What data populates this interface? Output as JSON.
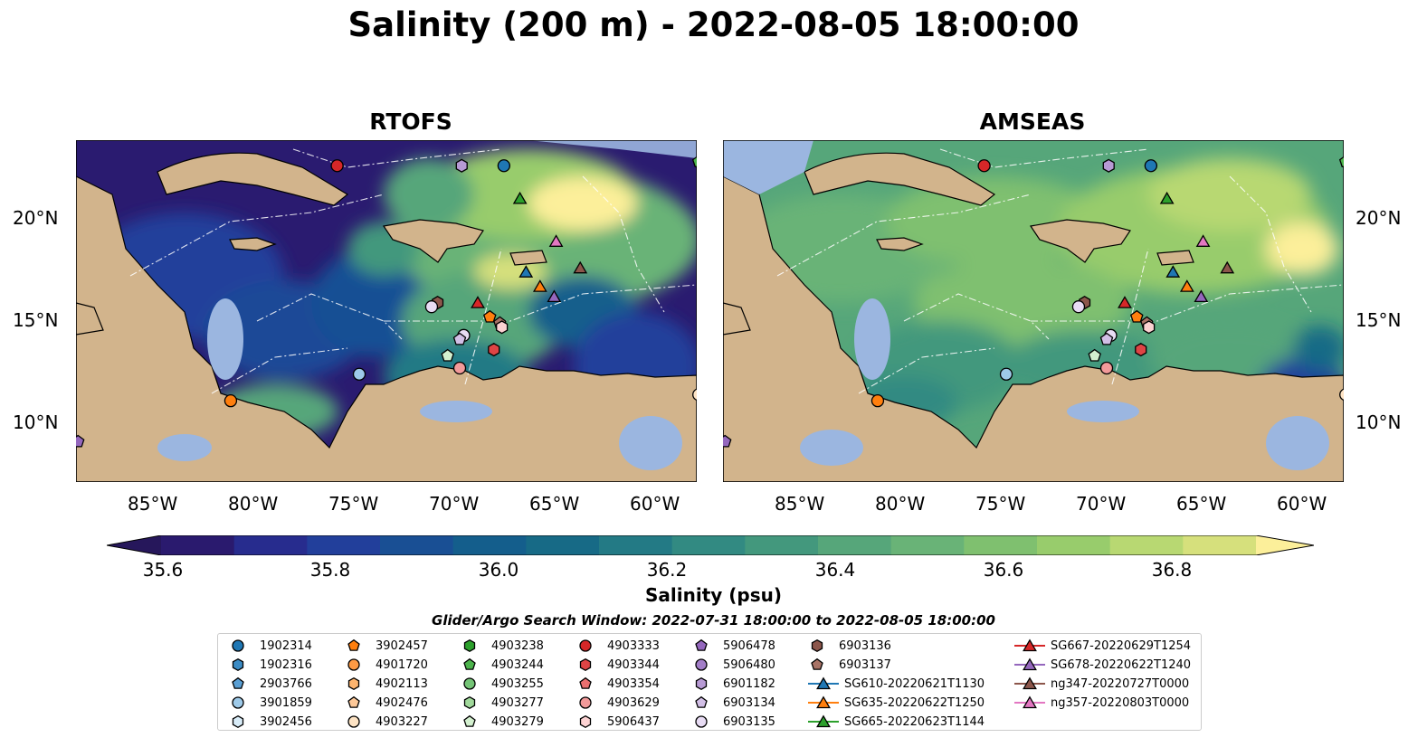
{
  "title": "Salinity (200 m) - 2022-08-05 18:00:00",
  "panels": [
    {
      "title": "RTOFS"
    },
    {
      "title": "AMSEAS"
    }
  ],
  "lat_labels": [
    "20°N",
    "15°N",
    "10°N"
  ],
  "lon_labels": [
    "85°W",
    "80°W",
    "75°W",
    "70°W",
    "65°W",
    "60°W"
  ],
  "colorbar": {
    "label": "Salinity (psu)",
    "ticks": [
      "35.6",
      "35.8",
      "36.0",
      "36.2",
      "36.4",
      "36.6",
      "36.8"
    ],
    "colors": [
      "#2a1a6e",
      "#272c8e",
      "#223f9b",
      "#194f94",
      "#145e8c",
      "#176a86",
      "#237a85",
      "#328a82",
      "#43987d",
      "#56a67a",
      "#69b377",
      "#7fc06f",
      "#98cc6c",
      "#b8d872",
      "#d6e07c"
    ],
    "extend_low": "#26175b",
    "extend_high": "#fcef9a"
  },
  "search_window": "Glider/Argo Search Window: 2022-07-31 18:00:00 to 2022-08-05 18:00:00",
  "legend_entries": [
    {
      "label": "1902314",
      "marker": "circle",
      "color": "#1f77b4"
    },
    {
      "label": "1902316",
      "marker": "hexagon",
      "color": "#3b8bc4"
    },
    {
      "label": "2903766",
      "marker": "pentagon",
      "color": "#5a9fd4"
    },
    {
      "label": "3901859",
      "marker": "circle",
      "color": "#9ecae9"
    },
    {
      "label": "3902456",
      "marker": "hexagon",
      "color": "#d8ecf8"
    },
    {
      "label": "3902457",
      "marker": "pentagon",
      "color": "#ff7f0e"
    },
    {
      "label": "4901720",
      "marker": "circle",
      "color": "#fd9a44"
    },
    {
      "label": "4902113",
      "marker": "hexagon",
      "color": "#fdb46e"
    },
    {
      "label": "4902476",
      "marker": "pentagon",
      "color": "#fdc898"
    },
    {
      "label": "4903227",
      "marker": "circle",
      "color": "#fde3c4"
    },
    {
      "label": "4903238",
      "marker": "hexagon",
      "color": "#2ca02c"
    },
    {
      "label": "4903244",
      "marker": "pentagon",
      "color": "#4cb34c"
    },
    {
      "label": "4903255",
      "marker": "circle",
      "color": "#74c476"
    },
    {
      "label": "4903277",
      "marker": "hexagon",
      "color": "#a1d99b"
    },
    {
      "label": "4903279",
      "marker": "pentagon",
      "color": "#d3f0cf"
    },
    {
      "label": "4903333",
      "marker": "circle",
      "color": "#d62728"
    },
    {
      "label": "4903344",
      "marker": "hexagon",
      "color": "#de4445"
    },
    {
      "label": "4903354",
      "marker": "pentagon",
      "color": "#ea7070"
    },
    {
      "label": "4903629",
      "marker": "circle",
      "color": "#f29a9a"
    },
    {
      "label": "5906437",
      "marker": "hexagon",
      "color": "#fcd2d2"
    },
    {
      "label": "5906478",
      "marker": "pentagon",
      "color": "#9467bd"
    },
    {
      "label": "5906480",
      "marker": "circle",
      "color": "#a37ec8"
    },
    {
      "label": "6901182",
      "marker": "hexagon",
      "color": "#b79ad4"
    },
    {
      "label": "6903134",
      "marker": "pentagon",
      "color": "#d2bfe6"
    },
    {
      "label": "6903135",
      "marker": "circle",
      "color": "#e8dcf4"
    },
    {
      "label": "6903136",
      "marker": "hexagon",
      "color": "#8c564b"
    },
    {
      "label": "6903137",
      "marker": "pentagon",
      "color": "#a87366"
    },
    {
      "label": "SG610-20220621T1130",
      "marker": "triangle",
      "color": "#1f77b4"
    },
    {
      "label": "SG635-20220622T1250",
      "marker": "triangle",
      "color": "#ff7f0e"
    },
    {
      "label": "SG665-20220623T1144",
      "marker": "triangle",
      "color": "#2ca02c"
    },
    {
      "label": "SG667-20220629T1254",
      "marker": "triangle",
      "color": "#d62728"
    },
    {
      "label": "SG678-20220622T1240",
      "marker": "triangle",
      "color": "#9467bd"
    },
    {
      "label": "ng347-20220727T0000",
      "marker": "triangle",
      "color": "#8c564b"
    },
    {
      "label": "ng357-20220803T0000",
      "marker": "triangle",
      "color": "#e377c2"
    }
  ],
  "map_points": [
    {
      "lon": -76.0,
      "lat": 22.6,
      "marker": "circle",
      "color": "#d62728"
    },
    {
      "lon": -67.7,
      "lat": 22.6,
      "marker": "circle",
      "color": "#1f77b4"
    },
    {
      "lon": -69.8,
      "lat": 22.6,
      "marker": "hexagon",
      "color": "#b79ad4"
    },
    {
      "lon": -58.0,
      "lat": 22.8,
      "marker": "pentagon",
      "color": "#4cb34c"
    },
    {
      "lon": -66.9,
      "lat": 21.0,
      "marker": "triangle",
      "color": "#2ca02c"
    },
    {
      "lon": -65.1,
      "lat": 18.9,
      "marker": "triangle",
      "color": "#e377c2"
    },
    {
      "lon": -63.9,
      "lat": 17.6,
      "marker": "triangle",
      "color": "#8c564b"
    },
    {
      "lon": -66.6,
      "lat": 17.4,
      "marker": "triangle",
      "color": "#1f77b4"
    },
    {
      "lon": -65.9,
      "lat": 16.7,
      "marker": "triangle",
      "color": "#ff7f0e"
    },
    {
      "lon": -65.2,
      "lat": 16.2,
      "marker": "triangle",
      "color": "#9467bd"
    },
    {
      "lon": -69.0,
      "lat": 15.9,
      "marker": "triangle",
      "color": "#d62728"
    },
    {
      "lon": -71.0,
      "lat": 15.9,
      "marker": "hexagon",
      "color": "#8c564b"
    },
    {
      "lon": -71.3,
      "lat": 15.7,
      "marker": "circle",
      "color": "#e8dcf4"
    },
    {
      "lon": -68.4,
      "lat": 15.2,
      "marker": "pentagon",
      "color": "#ff7f0e"
    },
    {
      "lon": -67.9,
      "lat": 14.9,
      "marker": "pentagon",
      "color": "#a87366"
    },
    {
      "lon": -67.8,
      "lat": 14.7,
      "marker": "hexagon",
      "color": "#fcd2d2"
    },
    {
      "lon": -69.7,
      "lat": 14.3,
      "marker": "circle",
      "color": "#e8dcf4"
    },
    {
      "lon": -69.9,
      "lat": 14.1,
      "marker": "pentagon",
      "color": "#d2bfe6"
    },
    {
      "lon": -70.5,
      "lat": 13.3,
      "marker": "pentagon",
      "color": "#d3f0cf"
    },
    {
      "lon": -68.2,
      "lat": 13.6,
      "marker": "hexagon",
      "color": "#de4445"
    },
    {
      "lon": -69.9,
      "lat": 12.7,
      "marker": "circle",
      "color": "#f29a9a"
    },
    {
      "lon": -74.9,
      "lat": 12.4,
      "marker": "circle",
      "color": "#9ecae9"
    },
    {
      "lon": -81.3,
      "lat": 11.1,
      "marker": "circle",
      "color": "#ff7f0e"
    },
    {
      "lon": -88.9,
      "lat": 9.1,
      "marker": "pentagon",
      "color": "#9467bd"
    },
    {
      "lon": -58.0,
      "lat": 11.4,
      "marker": "circle",
      "color": "#fde3c4"
    }
  ]
}
